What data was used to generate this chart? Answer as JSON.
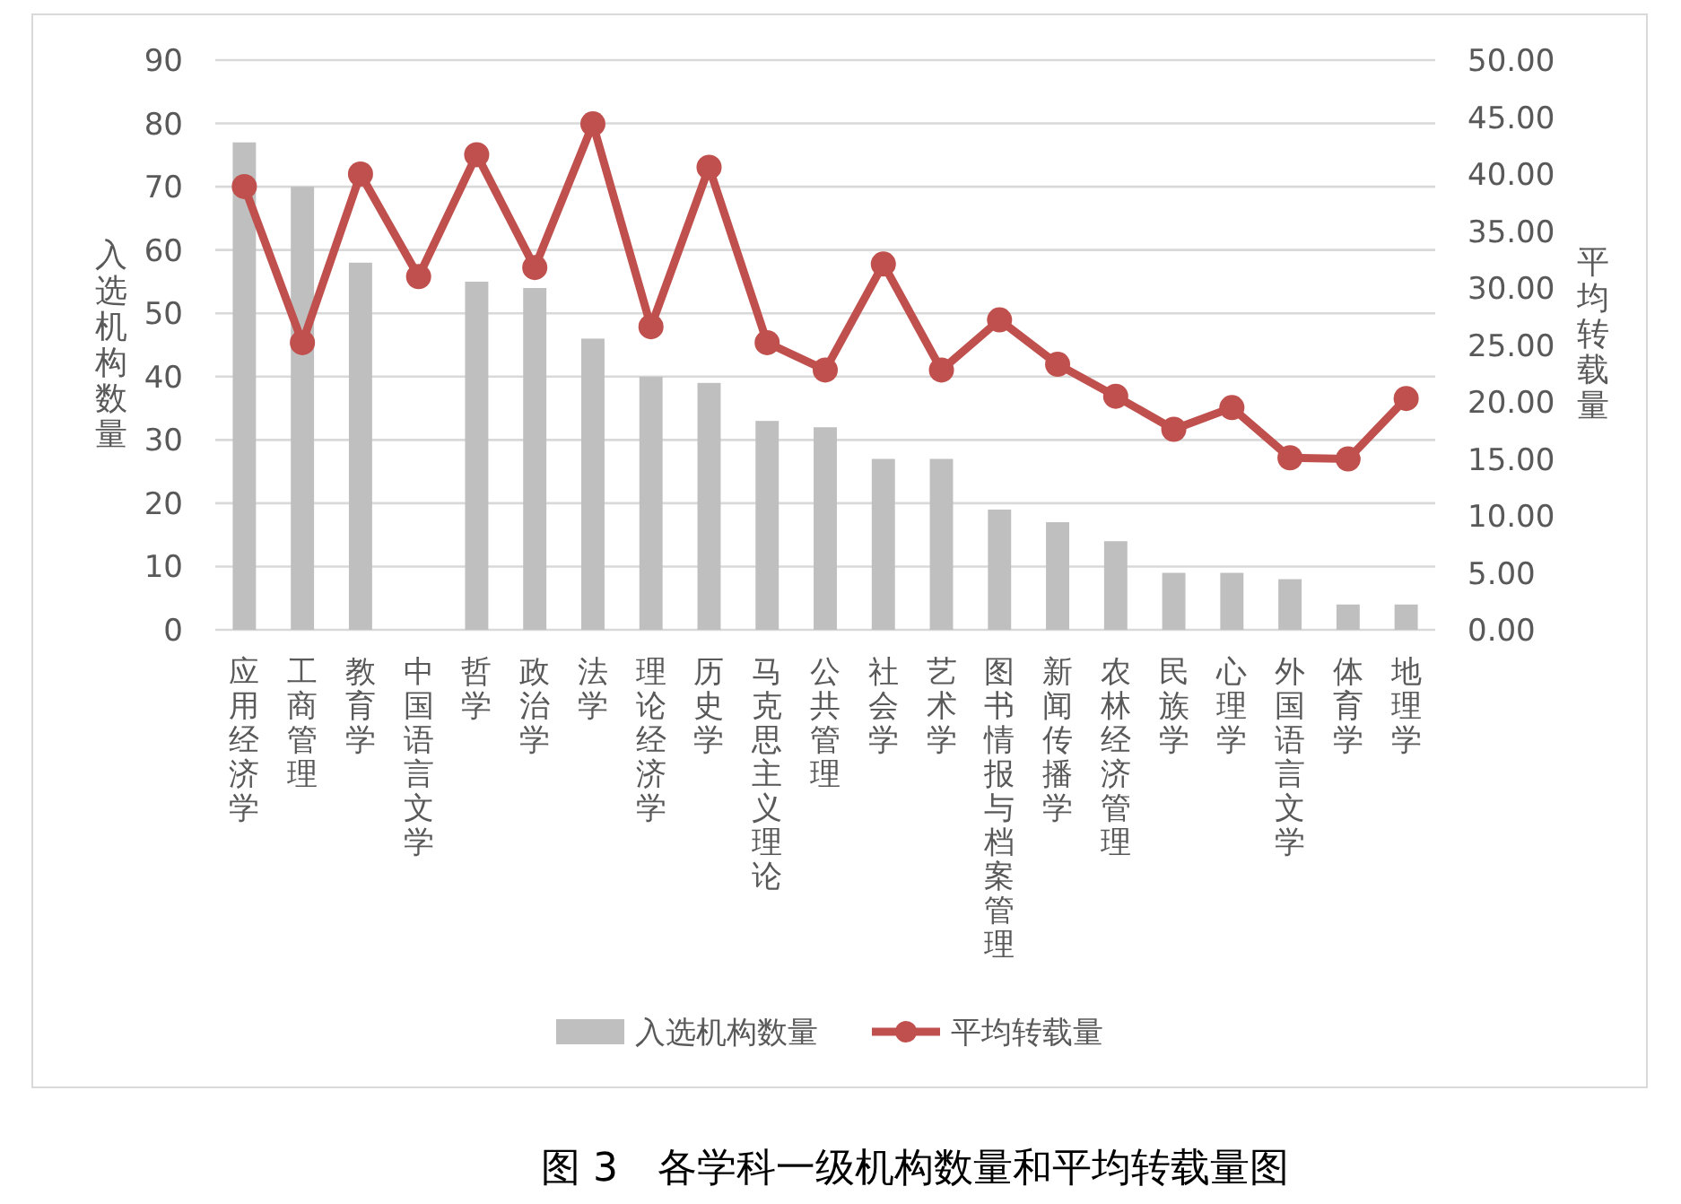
{
  "chart_data": {
    "type": "bar",
    "categories": [
      "应用经济学",
      "工商管理",
      "教育学",
      "中国语言文学",
      "哲学",
      "政治学",
      "法学",
      "理论经济学",
      "历史学",
      "马克思主义理论",
      "公共管理",
      "社会学",
      "艺术学",
      "图书情报与档案管理",
      "新闻传播学",
      "农林经济管理",
      "民族学",
      "心理学",
      "外国语言文学",
      "体育学",
      "地理学"
    ],
    "series": [
      {
        "name": "入选机构数量",
        "color": "#bfbfbf",
        "values": [
          77,
          70,
          58,
          null,
          55,
          54,
          46,
          40,
          39,
          33,
          32,
          27,
          27,
          19,
          17,
          14,
          9,
          9,
          8,
          4,
          4
        ]
      },
      {
        "name": "平均转载量",
        "type": "line",
        "axis": "y2",
        "color": "#c0504d",
        "values": [
          38.9,
          25.2,
          40.0,
          31.0,
          41.7,
          31.8,
          44.4,
          26.6,
          40.6,
          25.2,
          22.8,
          32.1,
          22.8,
          27.2,
          23.3,
          20.5,
          17.6,
          19.5,
          15.1,
          15.0,
          20.3
        ]
      }
    ],
    "ylabel": "入选机构数量",
    "y2label": "平均转载量",
    "ylim": [
      0,
      90
    ],
    "yticks": [
      0,
      10,
      20,
      30,
      40,
      50,
      60,
      70,
      80,
      90
    ],
    "y2lim": [
      0,
      50
    ],
    "y2ticks": [
      {
        "value": 0,
        "label": "0.00"
      },
      {
        "value": 5,
        "label": "5.00"
      },
      {
        "value": 10,
        "label": "10.00"
      },
      {
        "value": 15,
        "label": "15.00"
      },
      {
        "value": 20,
        "label": "20.00"
      },
      {
        "value": 25,
        "label": "25.00"
      },
      {
        "value": 30,
        "label": "30.00"
      },
      {
        "value": 35,
        "label": "35.00"
      },
      {
        "value": 40,
        "label": "40.00"
      },
      {
        "value": 45,
        "label": "45.00"
      },
      {
        "value": 50,
        "label": "50.00"
      }
    ],
    "grid": "y",
    "legend": "bottom",
    "marker": "circle",
    "line_style": "solid",
    "annotations": [
      "图 3　各学科一级机构数量和平均转载量图"
    ]
  }
}
